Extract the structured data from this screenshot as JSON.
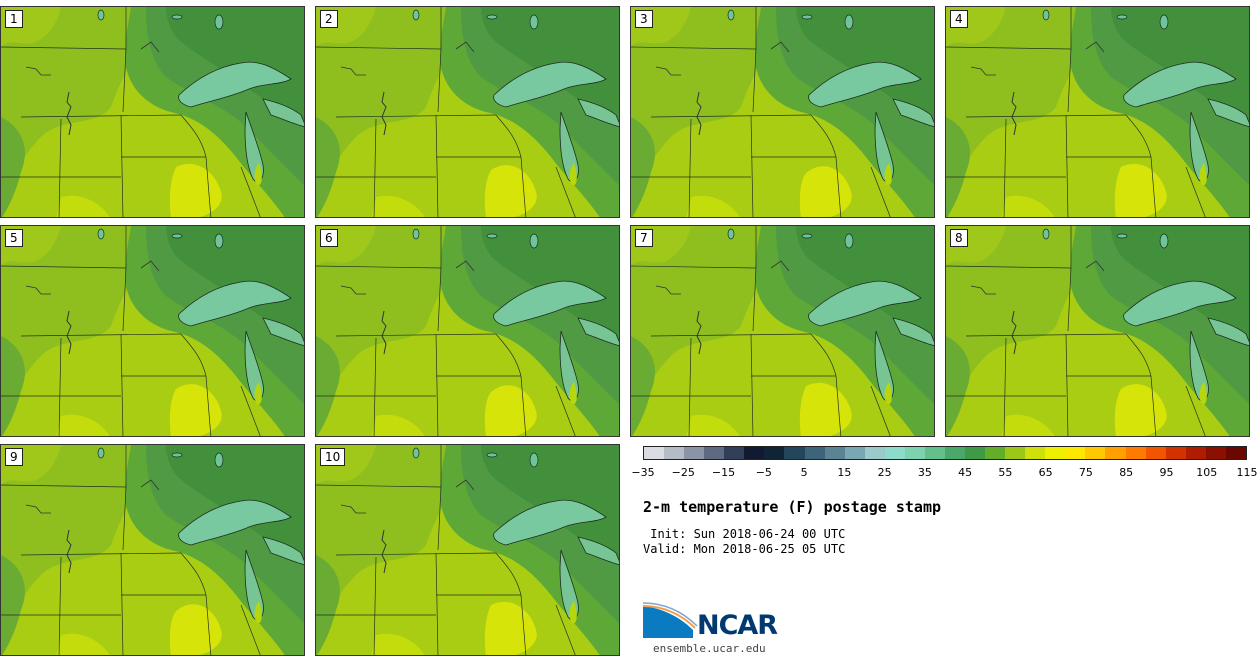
{
  "panels": [
    {
      "label": "1"
    },
    {
      "label": "2"
    },
    {
      "label": "3"
    },
    {
      "label": "4"
    },
    {
      "label": "5"
    },
    {
      "label": "6"
    },
    {
      "label": "7"
    },
    {
      "label": "8"
    },
    {
      "label": "9"
    },
    {
      "label": "10"
    }
  ],
  "colorbar": {
    "tick_labels": [
      "−35",
      "−25",
      "−15",
      "−5",
      "5",
      "15",
      "25",
      "35",
      "45",
      "55",
      "65",
      "75",
      "85",
      "95",
      "105",
      "115"
    ],
    "colors": [
      "#d9dde3",
      "#b5bcc6",
      "#8a94a4",
      "#5d6a80",
      "#323f58",
      "#111a30",
      "#0f2435",
      "#24465a",
      "#3d6478",
      "#5a8494",
      "#7aa8b2",
      "#9cc9c9",
      "#8ddbc9",
      "#7dd2b0",
      "#63bf8c",
      "#4aa86b",
      "#3e9a45",
      "#62ad2a",
      "#9bc817",
      "#cfe00a",
      "#eef000",
      "#ffe800",
      "#ffc800",
      "#ffa000",
      "#ff7a00",
      "#f25400",
      "#d23200",
      "#b01c00",
      "#8c1000",
      "#6a0800"
    ]
  },
  "title": "2-m temperature (F) postage stamp",
  "init_line": " Init: Sun 2018-06-24 00 UTC",
  "valid_line": "Valid: Mon 2018-06-25 05 UTC",
  "logo": {
    "text": "NCAR",
    "url": "ensemble.ucar.edu"
  }
}
